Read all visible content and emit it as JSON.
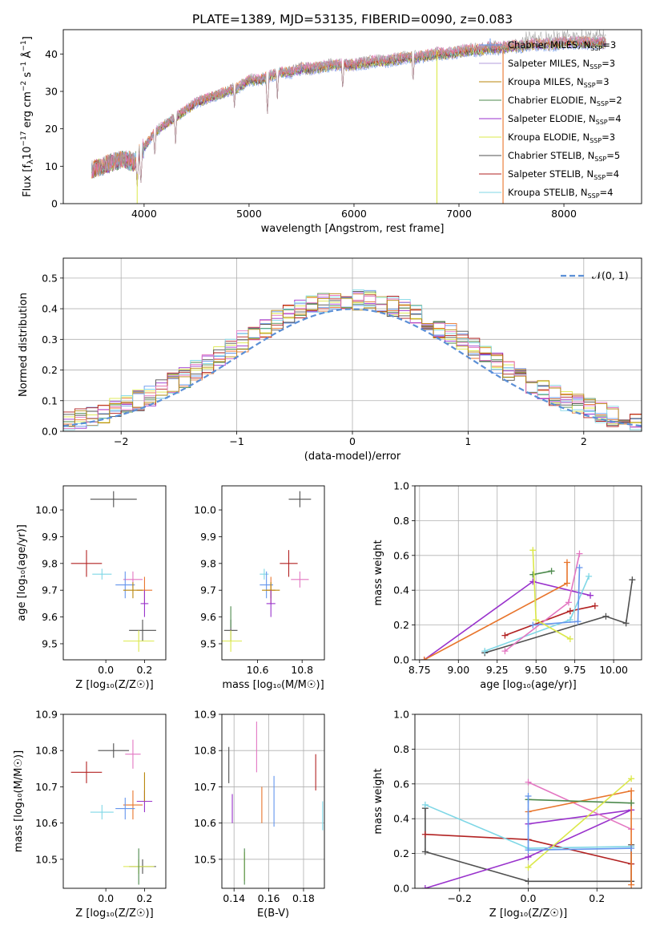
{
  "figure_title": "PLATE=1389, MJD=53135, FIBERID=0090, z=0.083",
  "chart_data": [
    {
      "id": "spectrum",
      "type": "line",
      "xlabel": "wavelength [Angstrom, rest frame]",
      "ylabel_parts": {
        "a": "Flux [f",
        "lam": "λ",
        "b": "10",
        "e1": "−17",
        "c": " erg cm",
        "e2": "−2",
        "d": " s",
        "e3": "−1",
        "f": " Å",
        "e4": "−1",
        "g": "]"
      },
      "xlim": [
        3230,
        8740
      ],
      "ylim": [
        0,
        46.5
      ],
      "xticks": [
        4000,
        5000,
        6000,
        7000,
        8000
      ],
      "yticks": [
        0,
        10,
        20,
        30,
        40
      ],
      "grid": false,
      "legend_position": "upper right",
      "series": [
        {
          "name": "Chabrier MILES",
          "nssp": "3",
          "color": "#6495ed",
          "marker": "+"
        },
        {
          "name": "Salpeter MILES",
          "nssp": "3",
          "color": "#b39ddb"
        },
        {
          "name": "Kroupa MILES",
          "nssp": "3",
          "color": "#b8860b"
        },
        {
          "name": "Chabrier ELODIE",
          "nssp": "2",
          "color": "#4d8a4d"
        },
        {
          "name": "Salpeter ELODIE",
          "nssp": "4",
          "color": "#9932cc"
        },
        {
          "name": "Kroupa ELODIE",
          "nssp": "3",
          "color": "#dbe84a"
        },
        {
          "name": "Chabrier STELIB",
          "nssp": "5",
          "color": "#505050"
        },
        {
          "name": "Salpeter STELIB",
          "nssp": "4",
          "color": "#b22222"
        },
        {
          "name": "Kroupa STELIB",
          "nssp": "4",
          "color": "#7fd7e6"
        }
      ],
      "extra_line_colors": [
        "#e8752c",
        "#e377c2",
        "#9e9e9e"
      ],
      "spectrum_profile": {
        "x": [
          3500,
          3600,
          3700,
          3800,
          3900,
          4000,
          4100,
          4200,
          4300,
          4400,
          4500,
          4600,
          4700,
          4800,
          4900,
          5000,
          5100,
          5200,
          5300,
          5400,
          5500,
          5600,
          5700,
          5800,
          5900,
          6000,
          6100,
          6200,
          6300,
          6400,
          6500,
          6600,
          6700,
          6800,
          6900,
          7000,
          7100,
          7200,
          7300,
          7400,
          7500,
          7600,
          7700,
          7800,
          7900,
          8000,
          8100,
          8200,
          8300,
          8400
        ],
        "y": [
          9,
          10,
          11,
          12,
          11,
          15,
          19,
          21,
          23,
          25,
          27,
          28,
          29,
          30,
          31,
          33,
          33,
          34,
          35,
          35,
          36,
          36,
          36.5,
          37,
          37,
          37,
          37.5,
          38,
          38,
          38.5,
          39,
          39,
          39.5,
          40,
          40,
          40.5,
          41,
          41,
          41.5,
          41.5,
          42,
          42,
          42.5,
          42.5,
          42.5,
          43,
          43,
          43,
          43,
          43
        ],
        "dips": [
          {
            "x": 3934,
            "to": 4,
            "color": "#dbe84a"
          },
          {
            "x": 3969,
            "to": 5
          },
          {
            "x": 4102,
            "to": 12
          },
          {
            "x": 4300,
            "to": 16
          },
          {
            "x": 4861,
            "to": 25
          },
          {
            "x": 5175,
            "to": 24
          },
          {
            "x": 5270,
            "to": 28
          },
          {
            "x": 5892,
            "to": 30
          },
          {
            "x": 6563,
            "to": 32
          }
        ],
        "drops": [
          {
            "x": 6790,
            "color": "#dbe84a"
          },
          {
            "x": 7420,
            "color": "#e8752c"
          }
        ]
      }
    },
    {
      "id": "residuals",
      "type": "histogram",
      "xlabel": "(data-model)/error",
      "ylabel": "Normed distribution",
      "xlim": [
        -2.5,
        2.5
      ],
      "ylim": [
        0,
        0.565
      ],
      "xticks": [
        -2,
        -1,
        0,
        1,
        2
      ],
      "yticks": [
        0.0,
        0.1,
        0.2,
        0.3,
        0.4,
        0.5
      ],
      "grid": true,
      "legend_position": "upper right",
      "reference_label": "𝒩(0, 1)",
      "reference_color": "#5b8fd6",
      "bin_width": 0.1,
      "colors": [
        "#6495ed",
        "#e8752c",
        "#4d8a4d",
        "#9932cc",
        "#dbe84a",
        "#505050",
        "#b22222",
        "#7fd7e6",
        "#e377c2",
        "#b8860b"
      ]
    },
    {
      "id": "z-age",
      "type": "scatter",
      "xlabel": "Z [log₁₀(Z/Z☉)]",
      "ylabel": "age  [log₁₀(age/yr)]",
      "xlim": [
        -0.22,
        0.31
      ],
      "ylim": [
        9.44,
        10.09
      ],
      "xticks": [
        "0.0",
        "0.2"
      ],
      "xtick_values": [
        0.0,
        0.2
      ],
      "yticks": [
        "9.5",
        "9.6",
        "9.7",
        "9.8",
        "9.9",
        "10.0"
      ],
      "ytick_values": [
        9.5,
        9.6,
        9.7,
        9.8,
        9.9,
        10.0
      ],
      "grid": false,
      "points": [
        {
          "x": 0.04,
          "y": 10.04,
          "xerr": 0.12,
          "yerr": 0.03,
          "color": "#505050"
        },
        {
          "x": -0.1,
          "y": 9.8,
          "xerr": 0.08,
          "yerr": 0.05,
          "color": "#b22222"
        },
        {
          "x": -0.02,
          "y": 9.76,
          "xerr": 0.05,
          "yerr": 0.02,
          "color": "#7fd7e6"
        },
        {
          "x": 0.14,
          "y": 9.74,
          "xerr": 0.05,
          "yerr": 0.03,
          "color": "#e377c2"
        },
        {
          "x": 0.1,
          "y": 9.72,
          "xerr": 0.05,
          "yerr": 0.05,
          "color": "#6495ed"
        },
        {
          "x": 0.2,
          "y": 9.7,
          "xerr": 0.04,
          "yerr": 0.05,
          "color": "#e8752c"
        },
        {
          "x": 0.14,
          "y": 9.7,
          "xerr": 0.05,
          "yerr": 0.03,
          "color": "#b8860b"
        },
        {
          "x": 0.2,
          "y": 9.65,
          "xerr": 0.02,
          "yerr": 0.05,
          "color": "#9932cc"
        },
        {
          "x": 0.19,
          "y": 9.55,
          "xerr": 0.07,
          "yerr": 0.04,
          "color": "#505050"
        },
        {
          "x": 0.17,
          "y": 9.51,
          "xerr": 0.08,
          "yerr": 0.04,
          "color": "#dbe84a"
        }
      ]
    },
    {
      "id": "mass-age",
      "type": "scatter",
      "xlabel": "mass [log₁₀(M/M☉)]",
      "ylabel": "",
      "xlim": [
        10.44,
        10.9
      ],
      "ylim": [
        9.44,
        10.09
      ],
      "xticks": [
        "10.6",
        "10.8"
      ],
      "xtick_values": [
        10.6,
        10.8
      ],
      "yticks": [
        "9.5",
        "9.6",
        "9.7",
        "9.8",
        "9.9",
        "10.0"
      ],
      "ytick_values": [
        9.5,
        9.6,
        9.7,
        9.8,
        9.9,
        10.0
      ],
      "grid": false,
      "points": [
        {
          "x": 10.79,
          "y": 10.04,
          "xerr": 0.05,
          "yerr": 0.03,
          "color": "#505050"
        },
        {
          "x": 10.74,
          "y": 9.8,
          "xerr": 0.04,
          "yerr": 0.05,
          "color": "#b22222"
        },
        {
          "x": 10.63,
          "y": 9.76,
          "xerr": 0.02,
          "yerr": 0.02,
          "color": "#7fd7e6"
        },
        {
          "x": 10.79,
          "y": 9.74,
          "xerr": 0.04,
          "yerr": 0.03,
          "color": "#e377c2"
        },
        {
          "x": 10.64,
          "y": 9.72,
          "xerr": 0.03,
          "yerr": 0.05,
          "color": "#6495ed"
        },
        {
          "x": 10.66,
          "y": 9.7,
          "xerr": 0.02,
          "yerr": 0.05,
          "color": "#e8752c"
        },
        {
          "x": 10.66,
          "y": 9.7,
          "xerr": 0.04,
          "yerr": 0.03,
          "color": "#b8860b"
        },
        {
          "x": 10.66,
          "y": 9.65,
          "xerr": 0.02,
          "yerr": 0.05,
          "color": "#9932cc"
        },
        {
          "x": 10.48,
          "y": 9.55,
          "xerr": 0.03,
          "yerr": 0.04,
          "color": "#505050"
        },
        {
          "x": 10.48,
          "y": 9.51,
          "xerr": 0.05,
          "yerr": 0.04,
          "color": "#dbe84a"
        },
        {
          "x": 10.48,
          "y": 9.6,
          "xerr": 0.0,
          "yerr": 0.04,
          "color": "#4d8a4d"
        }
      ]
    },
    {
      "id": "age-weight",
      "type": "line",
      "xlabel": "age  [log₁₀(age/yr)]",
      "ylabel": "mass weight",
      "xlim": [
        8.72,
        10.18
      ],
      "ylim": [
        0,
        1.0
      ],
      "xticks": [
        "8.75",
        "9.00",
        "9.25",
        "9.50",
        "9.75",
        "10.00"
      ],
      "xtick_values": [
        8.75,
        9.0,
        9.25,
        9.5,
        9.75,
        10.0
      ],
      "yticks": [
        "0.0",
        "0.2",
        "0.4",
        "0.6",
        "0.8",
        "1.0"
      ],
      "ytick_values": [
        0.0,
        0.2,
        0.4,
        0.6,
        0.8,
        1.0
      ],
      "grid": true,
      "series": [
        {
          "color": "#9932cc",
          "x": [
            8.78,
            9.48,
            9.85
          ],
          "y": [
            0.0,
            0.45,
            0.37
          ]
        },
        {
          "color": "#e8752c",
          "x": [
            8.78,
            9.7,
            9.7
          ],
          "y": [
            0.0,
            0.44,
            0.56
          ]
        },
        {
          "color": "#505050",
          "x": [
            9.17,
            9.95,
            10.08,
            10.12
          ],
          "y": [
            0.04,
            0.25,
            0.21,
            0.46
          ]
        },
        {
          "color": "#b22222",
          "x": [
            9.3,
            9.72,
            9.88
          ],
          "y": [
            0.14,
            0.28,
            0.31
          ]
        },
        {
          "color": "#7fd7e6",
          "x": [
            9.17,
            9.72,
            9.84
          ],
          "y": [
            0.05,
            0.23,
            0.48
          ]
        },
        {
          "color": "#e377c2",
          "x": [
            9.3,
            9.71,
            9.78
          ],
          "y": [
            0.05,
            0.33,
            0.61
          ]
        },
        {
          "color": "#6495ed",
          "x": [
            9.48,
            9.77,
            9.78
          ],
          "y": [
            0.2,
            0.22,
            0.53
          ]
        },
        {
          "color": "#4d8a4d",
          "x": [
            9.48,
            9.6
          ],
          "y": [
            0.49,
            0.51
          ]
        },
        {
          "color": "#dbe84a",
          "x": [
            9.48,
            9.5,
            9.72
          ],
          "y": [
            0.63,
            0.23,
            0.12
          ]
        }
      ]
    },
    {
      "id": "z-mass",
      "type": "scatter",
      "xlabel": "Z [log₁₀(Z/Z☉)]",
      "ylabel": "mass [log₁₀(M/M☉)]",
      "xlim": [
        -0.22,
        0.31
      ],
      "ylim": [
        10.42,
        10.9
      ],
      "xticks": [
        "0.0",
        "0.2"
      ],
      "xtick_values": [
        0.0,
        0.2
      ],
      "yticks": [
        "10.5",
        "10.6",
        "10.7",
        "10.8",
        "10.9"
      ],
      "ytick_values": [
        10.5,
        10.6,
        10.7,
        10.8,
        10.9
      ],
      "grid": false,
      "points": [
        {
          "x": 0.04,
          "y": 10.8,
          "xerr": 0.08,
          "yerr": 0.02,
          "color": "#505050"
        },
        {
          "x": 0.14,
          "y": 10.79,
          "xerr": 0.04,
          "yerr": 0.04,
          "color": "#e377c2"
        },
        {
          "x": -0.1,
          "y": 10.74,
          "xerr": 0.08,
          "yerr": 0.03,
          "color": "#b22222"
        },
        {
          "x": 0.2,
          "y": 10.66,
          "xerr": 0.04,
          "yerr": 0.03,
          "color": "#9932cc"
        },
        {
          "x": 0.14,
          "y": 10.65,
          "xerr": 0.05,
          "yerr": 0.04,
          "color": "#e8752c"
        },
        {
          "x": 0.1,
          "y": 10.64,
          "xerr": 0.05,
          "yerr": 0.03,
          "color": "#6495ed"
        },
        {
          "x": -0.02,
          "y": 10.63,
          "xerr": 0.06,
          "yerr": 0.02,
          "color": "#7fd7e6"
        },
        {
          "x": 0.2,
          "y": 10.7,
          "xerr": 0.0,
          "yerr": 0.04,
          "color": "#b8860b"
        },
        {
          "x": 0.19,
          "y": 10.48,
          "xerr": 0.07,
          "yerr": 0.02,
          "color": "#505050"
        },
        {
          "x": 0.17,
          "y": 10.48,
          "xerr": 0.08,
          "yerr": 0.02,
          "color": "#dbe84a"
        },
        {
          "x": 0.17,
          "y": 10.48,
          "xerr": 0.0,
          "yerr": 0.05,
          "color": "#4d8a4d"
        }
      ]
    },
    {
      "id": "ebv-mass",
      "type": "scatter",
      "xlabel": "E(B-V)",
      "ylabel": "",
      "xlim": [
        0.133,
        0.192
      ],
      "ylim": [
        10.42,
        10.9
      ],
      "xticks": [
        "0.14",
        "0.16",
        "0.18"
      ],
      "xtick_values": [
        0.14,
        0.16,
        0.18
      ],
      "yticks": [
        "10.5",
        "10.6",
        "10.7",
        "10.8",
        "10.9"
      ],
      "ytick_values": [
        10.5,
        10.6,
        10.7,
        10.8,
        10.9
      ],
      "grid": true,
      "points": [
        {
          "x": 0.137,
          "y": 10.76,
          "xerr": 0.0,
          "yerr": 0.05,
          "color": "#505050"
        },
        {
          "x": 0.139,
          "y": 10.64,
          "xerr": 0.0,
          "yerr": 0.04,
          "color": "#9932cc"
        },
        {
          "x": 0.146,
          "y": 10.48,
          "xerr": 0.0,
          "yerr": 0.04,
          "color": "#dbe84a"
        },
        {
          "x": 0.146,
          "y": 10.48,
          "xerr": 0.0,
          "yerr": 0.05,
          "color": "#4d8a4d"
        },
        {
          "x": 0.153,
          "y": 10.81,
          "xerr": 0.0,
          "yerr": 0.07,
          "color": "#e377c2"
        },
        {
          "x": 0.156,
          "y": 10.65,
          "xerr": 0.0,
          "yerr": 0.05,
          "color": "#e8752c"
        },
        {
          "x": 0.163,
          "y": 10.66,
          "xerr": 0.0,
          "yerr": 0.07,
          "color": "#6495ed"
        },
        {
          "x": 0.187,
          "y": 10.74,
          "xerr": 0.0,
          "yerr": 0.05,
          "color": "#b22222"
        },
        {
          "x": 0.191,
          "y": 10.62,
          "xerr": 0.0,
          "yerr": 0.04,
          "color": "#7fd7e6"
        }
      ]
    },
    {
      "id": "z-weight",
      "type": "line",
      "xlabel": "Z [log₁₀(Z/Z☉)]",
      "ylabel": "mass weight",
      "xlim": [
        -0.33,
        0.33
      ],
      "ylim": [
        0,
        1.0
      ],
      "xticks": [
        "−0.2",
        "0.0",
        "0.2"
      ],
      "xtick_values": [
        -0.2,
        0.0,
        0.2
      ],
      "yticks": [
        "0.0",
        "0.2",
        "0.4",
        "0.6",
        "0.8",
        "1.0"
      ],
      "ytick_values": [
        0.0,
        0.2,
        0.4,
        0.6,
        0.8,
        1.0
      ],
      "grid": true,
      "series": [
        {
          "color": "#505050",
          "x": [
            -0.3,
            -0.3,
            0.0,
            0.3,
            0.3
          ],
          "y": [
            0.46,
            0.21,
            0.04,
            0.04,
            0.25
          ]
        },
        {
          "color": "#b22222",
          "x": [
            -0.3,
            0.0,
            0.3
          ],
          "y": [
            0.31,
            0.28,
            0.14
          ]
        },
        {
          "color": "#9932cc",
          "x": [
            -0.3,
            0.0,
            0.3
          ],
          "y": [
            0.0,
            0.18,
            0.45
          ]
        },
        {
          "color": "#9932cc",
          "x": [
            0.0,
            0.3
          ],
          "y": [
            0.37,
            0.45
          ]
        },
        {
          "color": "#7fd7e6",
          "x": [
            -0.3,
            0.0,
            0.3
          ],
          "y": [
            0.48,
            0.23,
            0.24
          ]
        },
        {
          "color": "#e377c2",
          "x": [
            0.0,
            0.3
          ],
          "y": [
            0.61,
            0.34
          ]
        },
        {
          "color": "#e8752c",
          "x": [
            0.0,
            0.3,
            0.3
          ],
          "y": [
            0.44,
            0.56,
            0.02
          ]
        },
        {
          "color": "#4d8a4d",
          "x": [
            0.0,
            0.3
          ],
          "y": [
            0.51,
            0.49
          ]
        },
        {
          "color": "#dbe84a",
          "x": [
            0.0,
            0.3
          ],
          "y": [
            0.12,
            0.63
          ]
        },
        {
          "color": "#6495ed",
          "x": [
            0.0,
            0.0,
            0.3
          ],
          "y": [
            0.53,
            0.22,
            0.23
          ]
        }
      ]
    }
  ]
}
